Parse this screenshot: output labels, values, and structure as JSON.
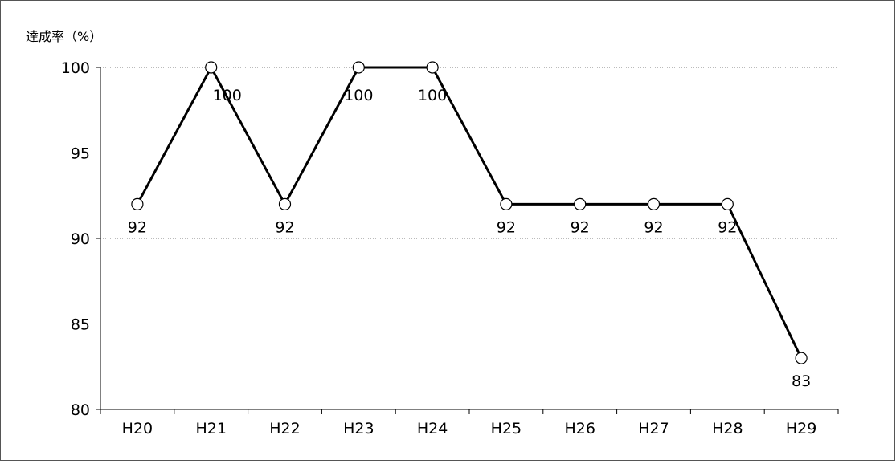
{
  "chart_data": {
    "type": "line",
    "title": "",
    "xlabel": "",
    "ylabel": "達成率（%）",
    "categories": [
      "H20",
      "H21",
      "H22",
      "H23",
      "H24",
      "H25",
      "H26",
      "H27",
      "H28",
      "H29"
    ],
    "series": [
      {
        "values": [
          92,
          100,
          92,
          100,
          100,
          92,
          92,
          92,
          92,
          83
        ],
        "data_labels": [
          "92",
          "100",
          "92",
          "100",
          "100",
          "92",
          "92",
          "92",
          "92",
          "83"
        ],
        "color": "#000000",
        "marker": "circle-open"
      }
    ],
    "ylim": [
      80,
      100
    ],
    "yticks": [
      "80",
      "85",
      "90",
      "95",
      "100"
    ],
    "grid": "horizontal-dotted",
    "legend": "none"
  }
}
